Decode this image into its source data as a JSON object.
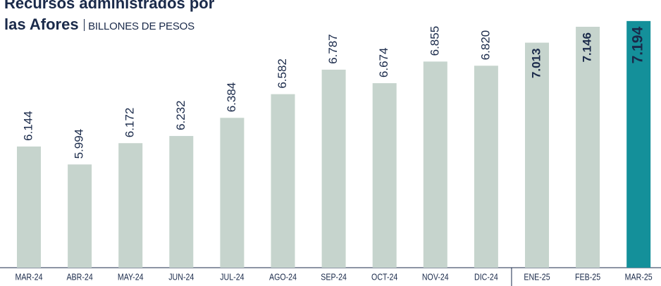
{
  "chart_data": {
    "type": "bar",
    "title": "Recursos administrados por las Afores",
    "subtitle": "BILLONES DE PESOS",
    "categories": [
      "MAR-24",
      "ABR-24",
      "MAY-24",
      "JUN-24",
      "JUL-24",
      "AGO-24",
      "SEP-24",
      "OCT-24",
      "NOV-24",
      "DIC-24",
      "ENE-25",
      "FEB-25",
      "MAR-25"
    ],
    "values": [
      6.144,
      5.994,
      6.172,
      6.232,
      6.384,
      6.582,
      6.787,
      6.674,
      6.855,
      6.82,
      7.013,
      7.146,
      7.194
    ],
    "value_labels": [
      "6.144",
      "5.994",
      "6.172",
      "6.232",
      "6.384",
      "6.582",
      "6.787",
      "6.674",
      "6.855",
      "6.820",
      "7.013",
      "7.146",
      "7.194"
    ],
    "color": "#c6d4cd",
    "highlight": "MAR-25",
    "highlight_color": "#14909a",
    "ylim": [
      5.13,
      7.37
    ]
  }
}
